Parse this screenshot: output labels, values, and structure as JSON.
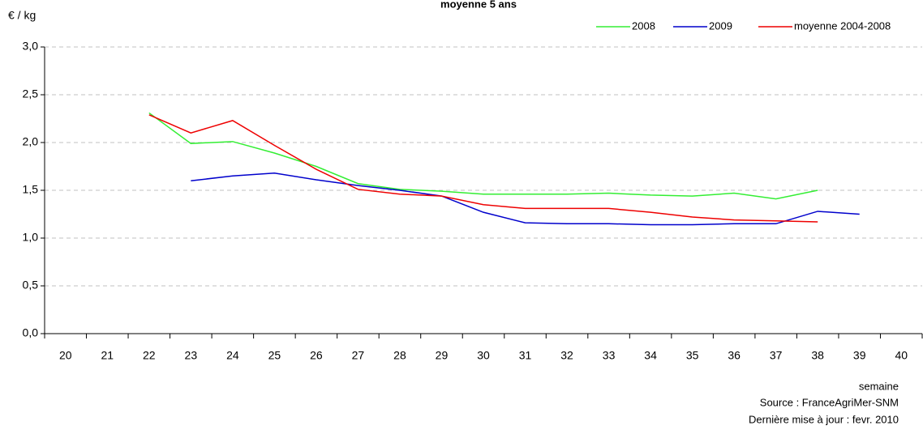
{
  "chart_data": {
    "type": "line",
    "title": "moyenne 5 ans",
    "y_label": "€ / kg",
    "x_label": "semaine",
    "source": "Source : FranceAgriMer-SNM",
    "updated": "Dernière mise à jour : fevr. 2010",
    "categories": [
      "20",
      "21",
      "22",
      "23",
      "24",
      "25",
      "26",
      "27",
      "28",
      "29",
      "30",
      "31",
      "32",
      "33",
      "34",
      "35",
      "36",
      "37",
      "38",
      "39",
      "40"
    ],
    "series": [
      {
        "name": "2008",
        "color": "#33ee33",
        "values": [
          null,
          null,
          2.31,
          1.99,
          2.01,
          1.89,
          1.75,
          1.57,
          1.51,
          1.49,
          1.46,
          1.46,
          1.46,
          1.47,
          1.45,
          1.44,
          1.47,
          1.41,
          1.5,
          null,
          null
        ]
      },
      {
        "name": "2009",
        "color": "#0000cc",
        "values": [
          null,
          null,
          null,
          1.6,
          1.65,
          1.68,
          1.61,
          1.55,
          1.5,
          1.44,
          1.27,
          1.16,
          1.15,
          1.15,
          1.14,
          1.14,
          1.15,
          1.15,
          1.28,
          1.25,
          null
        ]
      },
      {
        "name": "moyenne 2004-2008",
        "color": "#ee0000",
        "values": [
          null,
          null,
          2.29,
          2.1,
          2.23,
          1.97,
          1.72,
          1.51,
          1.46,
          1.44,
          1.35,
          1.31,
          1.31,
          1.31,
          1.27,
          1.22,
          1.19,
          1.18,
          1.17,
          null,
          null
        ]
      }
    ],
    "ylim": [
      0,
      3
    ],
    "yticks": [
      {
        "value": 0,
        "label": "0,0"
      },
      {
        "value": 0.5,
        "label": "0,5"
      },
      {
        "value": 1,
        "label": "1,0"
      },
      {
        "value": 1.5,
        "label": "1,5"
      },
      {
        "value": 2,
        "label": "2,0"
      },
      {
        "value": 2.5,
        "label": "2,5"
      },
      {
        "value": 3,
        "label": "3,0"
      }
    ],
    "grid": true,
    "legend": "top-right"
  }
}
